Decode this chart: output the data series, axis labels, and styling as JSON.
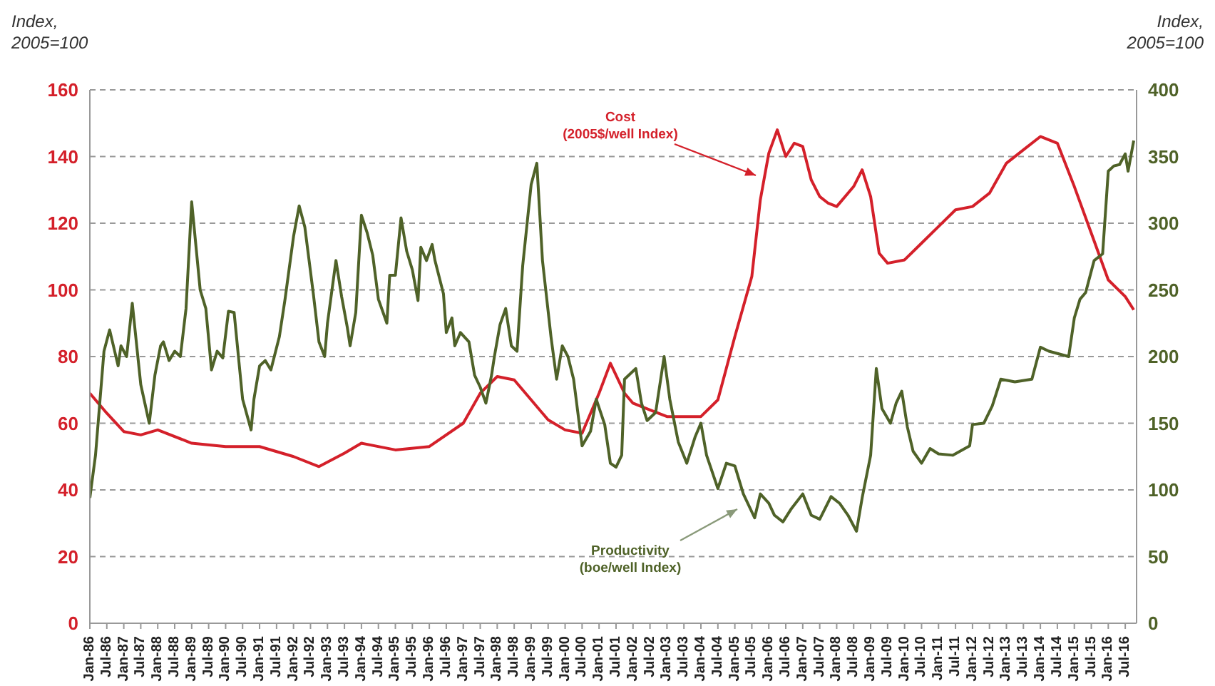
{
  "chart_data": {
    "type": "line",
    "ylabel": "Index, 2005=100",
    "y2label": "Index, 2005=100",
    "xlim": [
      "1986-01",
      "2016-11"
    ],
    "xticks": [
      {
        "value": "1986-01",
        "label": "Jan-86"
      },
      {
        "value": "1986-07",
        "label": "Jul-86"
      },
      {
        "value": "1987-01",
        "label": "Jan-87"
      },
      {
        "value": "1987-07",
        "label": "Jul-87"
      },
      {
        "value": "1988-01",
        "label": "Jan-88"
      },
      {
        "value": "1988-07",
        "label": "Jul-88"
      },
      {
        "value": "1989-01",
        "label": "Jan-89"
      },
      {
        "value": "1989-07",
        "label": "Jul-89"
      },
      {
        "value": "1990-01",
        "label": "Jan-90"
      },
      {
        "value": "1990-07",
        "label": "Jul-90"
      },
      {
        "value": "1991-01",
        "label": "Jan-91"
      },
      {
        "value": "1991-07",
        "label": "Jul-91"
      },
      {
        "value": "1992-01",
        "label": "Jan-92"
      },
      {
        "value": "1992-07",
        "label": "Jul-92"
      },
      {
        "value": "1993-01",
        "label": "Jan-93"
      },
      {
        "value": "1993-07",
        "label": "Jul-93"
      },
      {
        "value": "1994-01",
        "label": "Jan-94"
      },
      {
        "value": "1994-07",
        "label": "Jul-94"
      },
      {
        "value": "1995-01",
        "label": "Jan-95"
      },
      {
        "value": "1995-07",
        "label": "Jul-95"
      },
      {
        "value": "1996-01",
        "label": "Jan-96"
      },
      {
        "value": "1996-07",
        "label": "Jul-96"
      },
      {
        "value": "1997-01",
        "label": "Jan-97"
      },
      {
        "value": "1997-07",
        "label": "Jul-97"
      },
      {
        "value": "1998-01",
        "label": "Jan-98"
      },
      {
        "value": "1998-07",
        "label": "Jul-98"
      },
      {
        "value": "1999-01",
        "label": "Jan-99"
      },
      {
        "value": "1999-07",
        "label": "Jul-99"
      },
      {
        "value": "2000-01",
        "label": "Jan-00"
      },
      {
        "value": "2000-07",
        "label": "Jul-00"
      },
      {
        "value": "2001-01",
        "label": "Jan-01"
      },
      {
        "value": "2001-07",
        "label": "Jul-01"
      },
      {
        "value": "2002-01",
        "label": "Jan-02"
      },
      {
        "value": "2002-07",
        "label": "Jul-02"
      },
      {
        "value": "2003-01",
        "label": "Jan-03"
      },
      {
        "value": "2003-07",
        "label": "Jul-03"
      },
      {
        "value": "2004-01",
        "label": "Jan-04"
      },
      {
        "value": "2004-07",
        "label": "Jul-04"
      },
      {
        "value": "2005-01",
        "label": "Jan-05"
      },
      {
        "value": "2005-07",
        "label": "Jul-05"
      },
      {
        "value": "2006-01",
        "label": "Jan-06"
      },
      {
        "value": "2006-07",
        "label": "Jul-06"
      },
      {
        "value": "2007-01",
        "label": "Jan-07"
      },
      {
        "value": "2007-07",
        "label": "Jul-07"
      },
      {
        "value": "2008-01",
        "label": "Jan-08"
      },
      {
        "value": "2008-07",
        "label": "Jul-08"
      },
      {
        "value": "2009-01",
        "label": "Jan-09"
      },
      {
        "value": "2009-07",
        "label": "Jul-09"
      },
      {
        "value": "2010-01",
        "label": "Jan-10"
      },
      {
        "value": "2010-07",
        "label": "Jul-10"
      },
      {
        "value": "2011-01",
        "label": "Jan-11"
      },
      {
        "value": "2011-07",
        "label": "Jul-11"
      },
      {
        "value": "2012-01",
        "label": "Jan-12"
      },
      {
        "value": "2012-07",
        "label": "Jul-12"
      },
      {
        "value": "2013-01",
        "label": "Jan-13"
      },
      {
        "value": "2013-07",
        "label": "Jul-13"
      },
      {
        "value": "2014-01",
        "label": "Jan-14"
      },
      {
        "value": "2014-07",
        "label": "Jul-14"
      },
      {
        "value": "2015-01",
        "label": "Jan-15"
      },
      {
        "value": "2015-07",
        "label": "Jul-15"
      },
      {
        "value": "2016-01",
        "label": "Jan-16"
      },
      {
        "value": "2016-07",
        "label": "Jul-16"
      }
    ],
    "ylim": [
      0,
      160
    ],
    "yticks": [
      0,
      20,
      40,
      60,
      80,
      100,
      120,
      140,
      160
    ],
    "y2lim": [
      0,
      400
    ],
    "y2ticks": [
      0,
      50,
      100,
      150,
      200,
      250,
      300,
      350,
      400
    ],
    "grid": "y",
    "series": [
      {
        "color": "#d4202a",
        "x": [
          "1986-01",
          "1986-07",
          "1987-01",
          "1987-07",
          "1988-01",
          "1989-01",
          "1990-01",
          "1991-01",
          "1992-01",
          "1992-10",
          "1993-07",
          "1994-01",
          "1995-01",
          "1996-01",
          "1997-01",
          "1997-07",
          "1998-01",
          "1998-07",
          "1999-01",
          "1999-07",
          "2000-01",
          "2000-07",
          "2001-01",
          "2001-05",
          "2001-10",
          "2002-01",
          "2002-07",
          "2003-01",
          "2004-01",
          "2004-07",
          "2005-01",
          "2005-07",
          "2005-10",
          "2006-01",
          "2006-04",
          "2006-07",
          "2006-10",
          "2007-01",
          "2007-04",
          "2007-07",
          "2007-10",
          "2008-01",
          "2008-07",
          "2008-10",
          "2009-01",
          "2009-04",
          "2009-07",
          "2010-01",
          "2010-07",
          "2011-01",
          "2011-07",
          "2012-01",
          "2012-07",
          "2013-01",
          "2013-07",
          "2014-01",
          "2014-07",
          "2015-01",
          "2015-07",
          "2016-01",
          "2016-07",
          "2016-10"
        ],
        "values": [
          69,
          63,
          57.5,
          56.5,
          58,
          54,
          53,
          53,
          50,
          47,
          51,
          54,
          52,
          53,
          60,
          69,
          74,
          73,
          67,
          61,
          58,
          57,
          69,
          78,
          69,
          66,
          64,
          62,
          62,
          67,
          86,
          104,
          127,
          141,
          148,
          140,
          144,
          143,
          133,
          128,
          126,
          125,
          131,
          136,
          128,
          111,
          108,
          109,
          114,
          119,
          124,
          125,
          129,
          138,
          142,
          146,
          144,
          131,
          117,
          103,
          98,
          94
        ]
      },
      {
        "color": "#4f6228",
        "axis": "y2",
        "x": [
          "1986-01",
          "1986-03",
          "1986-06",
          "1986-08",
          "1986-11",
          "1986-12",
          "1987-02",
          "1987-04",
          "1987-07",
          "1987-10",
          "1987-12",
          "1988-02",
          "1988-03",
          "1988-05",
          "1988-07",
          "1988-09",
          "1988-11",
          "1989-01",
          "1989-04",
          "1989-06",
          "1989-08",
          "1989-10",
          "1989-12",
          "1990-02",
          "1990-04",
          "1990-07",
          "1990-10",
          "1990-11",
          "1991-01",
          "1991-03",
          "1991-05",
          "1991-08",
          "1991-10",
          "1992-01",
          "1992-03",
          "1992-05",
          "1992-08",
          "1992-10",
          "1992-12",
          "1993-01",
          "1993-04",
          "1993-06",
          "1993-08",
          "1993-09",
          "1993-11",
          "1994-01",
          "1994-03",
          "1994-05",
          "1994-07",
          "1994-10",
          "1994-11",
          "1995-01",
          "1995-03",
          "1995-05",
          "1995-07",
          "1995-09",
          "1995-10",
          "1995-12",
          "1996-02",
          "1996-03",
          "1996-06",
          "1996-07",
          "1996-09",
          "1996-10",
          "1996-12",
          "1997-03",
          "1997-05",
          "1997-07",
          "1997-09",
          "1997-11",
          "1997-12",
          "1998-02",
          "1998-04",
          "1998-06",
          "1998-08",
          "1998-10",
          "1999-01",
          "1999-03",
          "1999-05",
          "1999-08",
          "1999-10",
          "1999-12",
          "2000-02",
          "2000-04",
          "2000-07",
          "2000-10",
          "2000-12",
          "2001-03",
          "2001-05",
          "2001-07",
          "2001-09",
          "2001-10",
          "2002-02",
          "2002-04",
          "2002-06",
          "2002-09",
          "2002-12",
          "2003-02",
          "2003-05",
          "2003-08",
          "2003-11",
          "2004-01",
          "2004-03",
          "2004-07",
          "2004-10",
          "2005-01",
          "2005-04",
          "2005-08",
          "2005-10",
          "2006-01",
          "2006-03",
          "2006-06",
          "2006-09",
          "2007-01",
          "2007-04",
          "2007-07",
          "2007-11",
          "2008-02",
          "2008-05",
          "2008-08",
          "2008-10",
          "2009-01",
          "2009-03",
          "2009-05",
          "2009-08",
          "2009-10",
          "2009-12",
          "2010-02",
          "2010-04",
          "2010-07",
          "2010-10",
          "2011-01",
          "2011-06",
          "2011-12",
          "2012-01",
          "2012-05",
          "2012-08",
          "2012-11",
          "2013-04",
          "2013-10",
          "2014-01",
          "2014-04",
          "2014-11",
          "2015-01",
          "2015-03",
          "2015-05",
          "2015-08",
          "2015-11",
          "2016-01",
          "2016-03",
          "2016-05",
          "2016-07",
          "2016-08",
          "2016-10"
        ],
        "values": [
          94,
          126,
          204,
          220,
          193,
          208,
          200,
          240,
          179,
          150,
          186,
          208,
          211,
          197,
          204,
          200,
          236,
          316,
          250,
          236,
          190,
          204,
          199,
          234,
          233,
          168,
          145,
          168,
          193,
          197,
          190,
          215,
          243,
          290,
          313,
          297,
          247,
          211,
          200,
          225,
          272,
          245,
          222,
          208,
          233,
          306,
          293,
          276,
          243,
          225,
          261,
          261,
          304,
          279,
          265,
          242,
          282,
          272,
          284,
          272,
          247,
          218,
          229,
          208,
          218,
          211,
          186,
          177,
          165,
          186,
          200,
          224,
          236,
          208,
          204,
          268,
          329,
          345,
          272,
          215,
          183,
          208,
          200,
          183,
          133,
          144,
          168,
          149,
          120,
          117,
          126,
          183,
          191,
          165,
          152,
          158,
          200,
          168,
          136,
          120,
          140,
          150,
          126,
          101,
          120,
          118,
          97,
          79,
          97,
          90,
          81,
          76,
          86,
          97,
          81,
          78,
          95,
          90,
          81,
          69,
          94,
          126,
          191,
          161,
          150,
          165,
          174,
          147,
          129,
          120,
          131,
          127,
          126,
          133,
          149,
          150,
          163,
          183,
          181,
          183,
          207,
          204,
          200,
          229,
          243,
          248,
          272,
          277,
          339,
          343,
          344,
          352,
          339,
          362
        ]
      }
    ],
    "annotations": [
      "Cost (2005$/well Index)",
      "Productivity (boe/well Index)"
    ]
  }
}
